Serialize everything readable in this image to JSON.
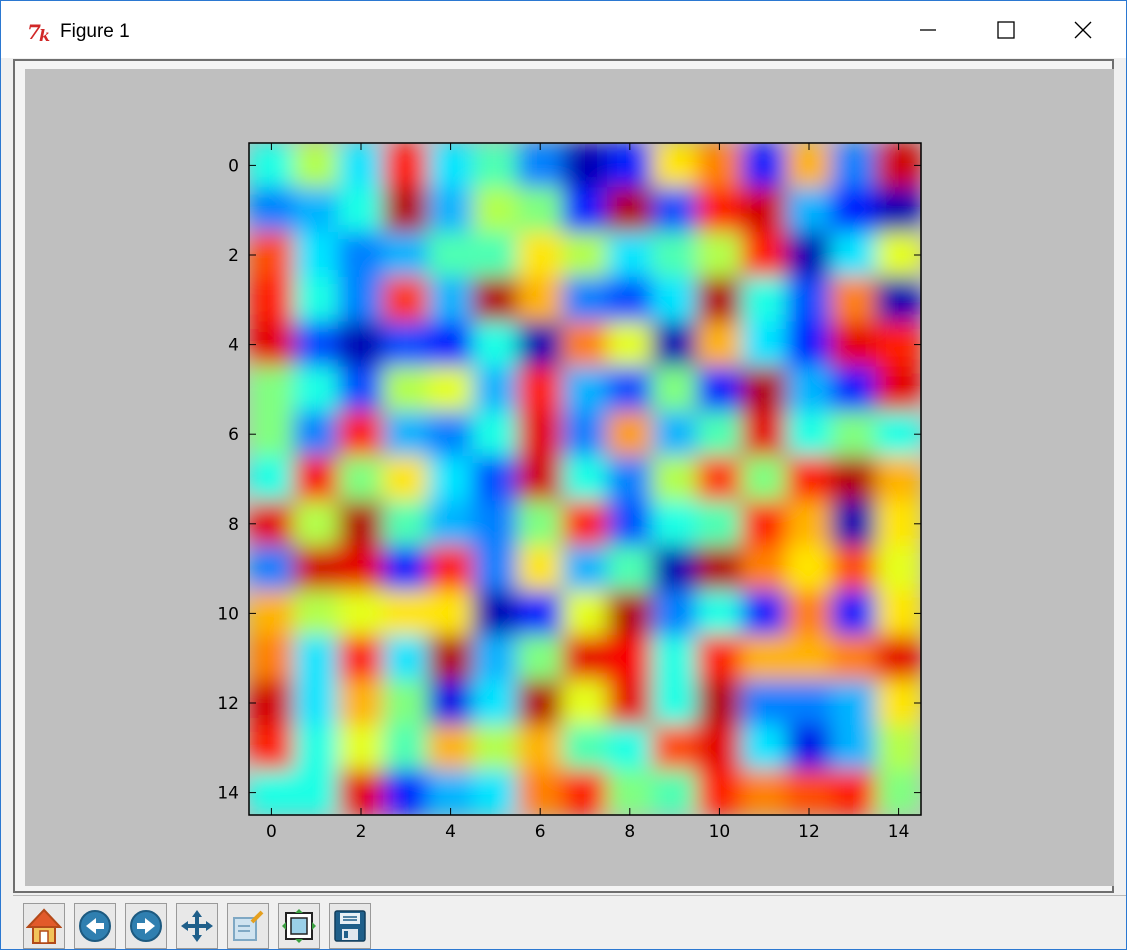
{
  "window": {
    "title": "Figure 1"
  },
  "toolbar": {
    "buttons": [
      {
        "name": "home",
        "icon": "home-icon"
      },
      {
        "name": "back",
        "icon": "back-arrow-icon"
      },
      {
        "name": "forward",
        "icon": "forward-arrow-icon"
      },
      {
        "name": "pan",
        "icon": "pan-arrows-icon"
      },
      {
        "name": "zoom",
        "icon": "zoom-rect-icon"
      },
      {
        "name": "subplots",
        "icon": "subplots-icon"
      },
      {
        "name": "save",
        "icon": "save-disk-icon"
      }
    ]
  },
  "chart_data": {
    "type": "heatmap",
    "colormap": "jet",
    "interpolation": "bicubic",
    "grid": false,
    "x_range": [
      -0.5,
      14.5
    ],
    "y_range": [
      -0.5,
      14.5
    ],
    "y_inverted": true,
    "x_ticks": [
      0,
      2,
      4,
      6,
      8,
      10,
      12,
      14
    ],
    "y_ticks": [
      0,
      2,
      4,
      6,
      8,
      10,
      12,
      14
    ],
    "x_tick_labels": [
      "0",
      "2",
      "4",
      "6",
      "8",
      "10",
      "12",
      "14"
    ],
    "y_tick_labels": [
      "0",
      "2",
      "4",
      "6",
      "8",
      "10",
      "12",
      "14"
    ],
    "values": [
      [
        0.4,
        0.55,
        0.35,
        0.85,
        0.35,
        0.45,
        0.25,
        0.05,
        0.15,
        0.65,
        0.75,
        0.15,
        0.7,
        0.25,
        0.92
      ],
      [
        0.25,
        0.3,
        0.4,
        0.95,
        0.3,
        0.55,
        0.5,
        0.15,
        0.95,
        0.2,
        0.85,
        0.92,
        0.3,
        0.15,
        0.05
      ],
      [
        0.8,
        0.35,
        0.25,
        0.3,
        0.45,
        0.45,
        0.65,
        0.55,
        0.35,
        0.45,
        0.55,
        0.85,
        0.05,
        0.35,
        0.6
      ],
      [
        0.85,
        0.4,
        0.25,
        0.82,
        0.3,
        0.95,
        0.7,
        0.25,
        0.2,
        0.35,
        0.95,
        0.4,
        0.2,
        0.75,
        0.05
      ],
      [
        0.9,
        0.2,
        0.05,
        0.2,
        0.15,
        0.4,
        0.05,
        0.75,
        0.6,
        0.05,
        0.7,
        0.35,
        0.15,
        0.9,
        0.85
      ],
      [
        0.5,
        0.4,
        0.2,
        0.55,
        0.6,
        0.3,
        0.85,
        0.3,
        0.2,
        0.5,
        0.15,
        0.95,
        0.3,
        0.15,
        0.9
      ],
      [
        0.5,
        0.25,
        0.85,
        0.3,
        0.25,
        0.4,
        0.9,
        0.25,
        0.72,
        0.3,
        0.45,
        0.9,
        0.4,
        0.5,
        0.4
      ],
      [
        0.4,
        0.88,
        0.5,
        0.65,
        0.35,
        0.2,
        0.92,
        0.4,
        0.25,
        0.55,
        0.82,
        0.5,
        0.85,
        0.95,
        0.7
      ],
      [
        0.9,
        0.55,
        0.95,
        0.45,
        0.3,
        0.25,
        0.5,
        0.85,
        0.2,
        0.4,
        0.45,
        0.85,
        0.7,
        0.05,
        0.65
      ],
      [
        0.25,
        0.92,
        0.9,
        0.15,
        0.85,
        0.25,
        0.65,
        0.3,
        0.45,
        0.05,
        0.95,
        0.75,
        0.65,
        0.8,
        0.6
      ],
      [
        0.7,
        0.55,
        0.6,
        0.65,
        0.65,
        0.05,
        0.15,
        0.6,
        0.95,
        0.25,
        0.4,
        0.15,
        0.75,
        0.15,
        0.65
      ],
      [
        0.75,
        0.35,
        0.85,
        0.35,
        0.95,
        0.3,
        0.5,
        0.9,
        0.88,
        0.4,
        0.85,
        0.7,
        0.7,
        0.75,
        0.9
      ],
      [
        0.92,
        0.35,
        0.7,
        0.5,
        0.1,
        0.35,
        0.95,
        0.6,
        0.9,
        0.4,
        0.95,
        0.25,
        0.25,
        0.3,
        0.65
      ],
      [
        0.85,
        0.4,
        0.6,
        0.45,
        0.7,
        0.55,
        0.7,
        0.45,
        0.4,
        0.8,
        0.9,
        0.35,
        0.1,
        0.3,
        0.55
      ],
      [
        0.4,
        0.4,
        0.9,
        0.15,
        0.3,
        0.35,
        0.75,
        0.85,
        0.5,
        0.45,
        0.85,
        0.75,
        0.8,
        0.85,
        0.5
      ]
    ]
  }
}
